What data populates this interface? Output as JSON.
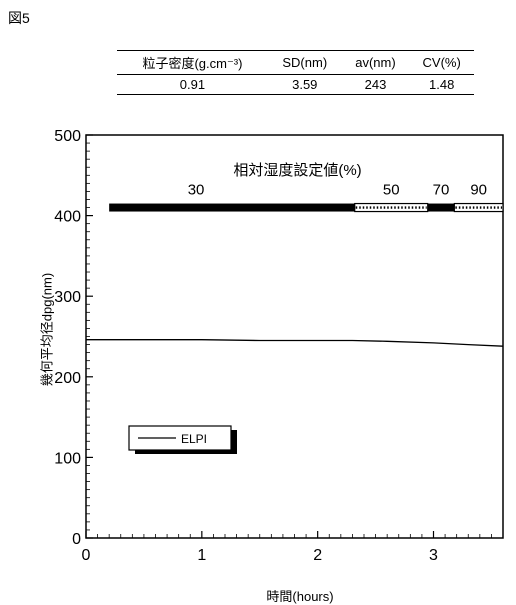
{
  "figure_label": "図5",
  "stats_table": {
    "headers": [
      "粒子密度(g.cm⁻³)",
      "SD(nm)",
      "av(nm)",
      "CV(%)"
    ],
    "row": [
      "0.91",
      "3.59",
      "243",
      "1.48"
    ]
  },
  "chart_data": {
    "type": "line",
    "xlabel": "時間(hours)",
    "ylabel": "幾何平均径dpg(nm)",
    "xlim": [
      0,
      3.6
    ],
    "ylim": [
      0,
      500
    ],
    "xticks": [
      0,
      1,
      2,
      3
    ],
    "yticks": [
      0,
      100,
      200,
      300,
      400,
      500
    ],
    "grid": false,
    "legend": {
      "placement": "lower-left",
      "entries": [
        "ELPI"
      ]
    },
    "series": [
      {
        "name": "ELPI",
        "x": [
          0,
          0.5,
          1.0,
          1.5,
          2.0,
          2.3,
          2.6,
          3.0,
          3.3,
          3.6
        ],
        "y": [
          246,
          246,
          246,
          245,
          245,
          245,
          244,
          242,
          240,
          238
        ]
      }
    ],
    "humidity": {
      "title": "相対湿度設定値(%)",
      "segments": [
        {
          "label": "30",
          "x_start": 0.2,
          "x_end": 2.32,
          "y": 410,
          "style": "solid"
        },
        {
          "label": "50",
          "x_start": 2.32,
          "x_end": 2.95,
          "y": 410,
          "style": "dotted"
        },
        {
          "label": "70",
          "x_start": 2.95,
          "x_end": 3.18,
          "y": 410,
          "style": "solid"
        },
        {
          "label": "90",
          "x_start": 3.18,
          "x_end": 3.6,
          "y": 410,
          "style": "dotted"
        }
      ]
    }
  }
}
